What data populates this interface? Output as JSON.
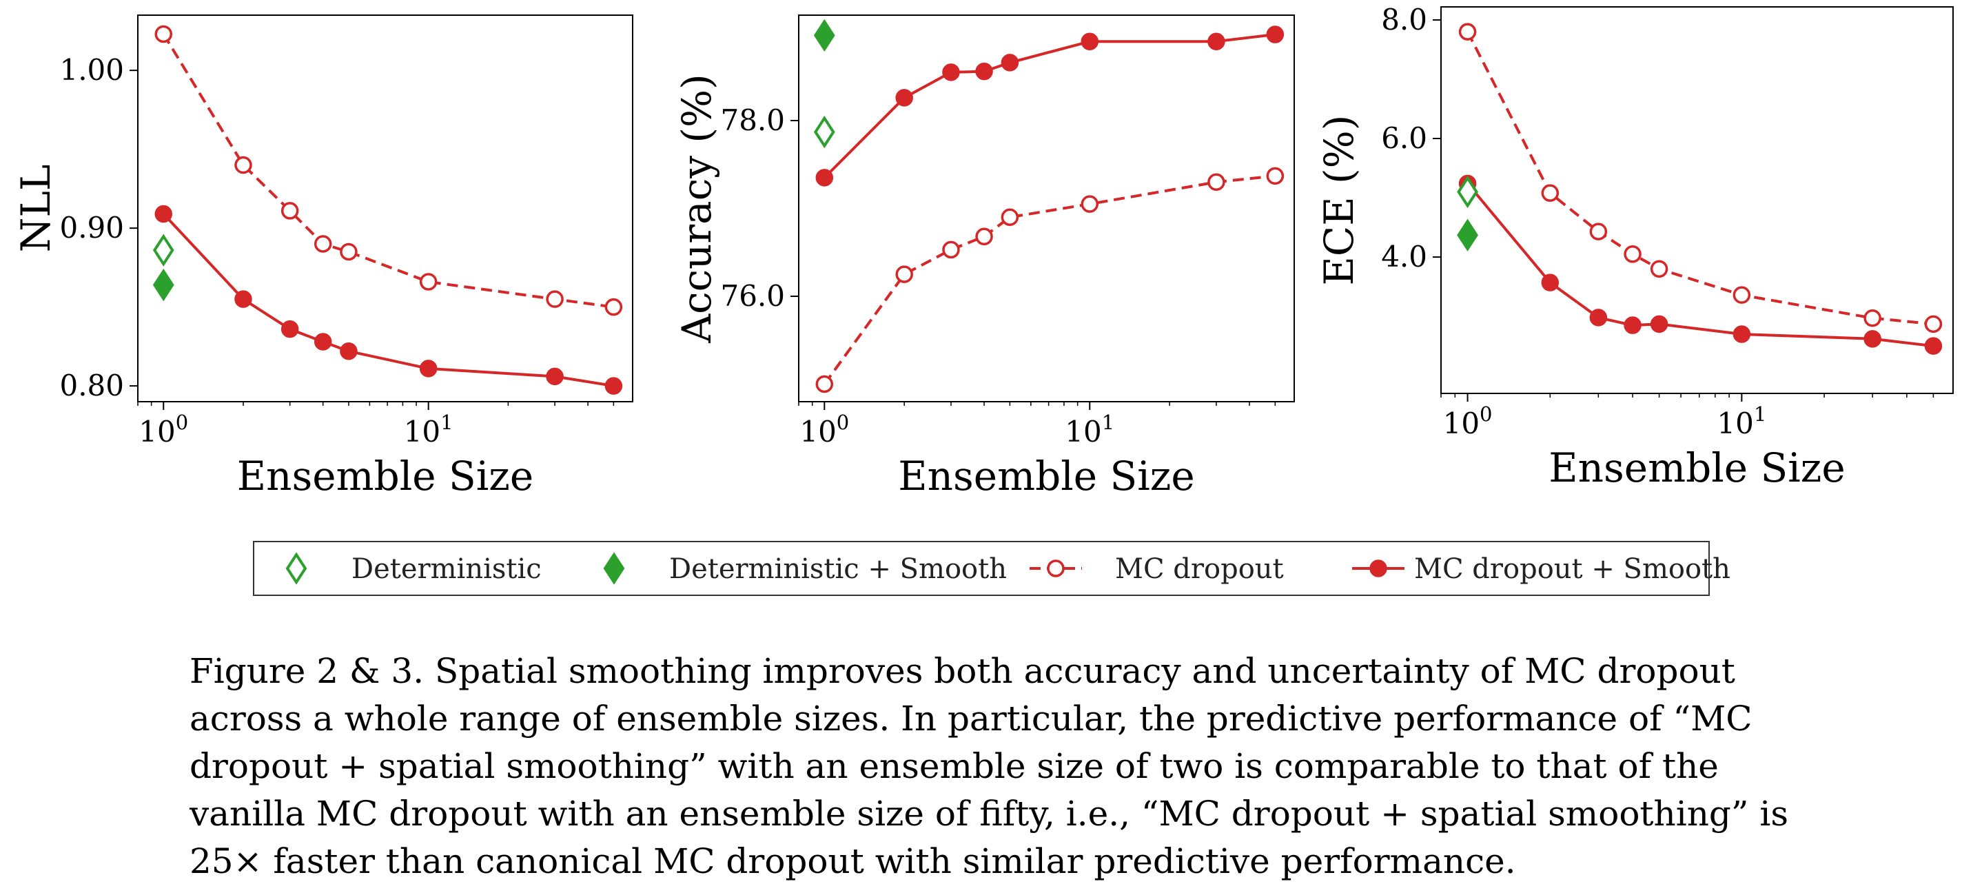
{
  "chart_data": [
    {
      "type": "line",
      "xscale": "log",
      "xlabel": "Ensemble Size",
      "ylabel": "NLL",
      "x_ticks": [
        "10^0",
        "10^1"
      ],
      "y_ticks": [
        "0.80",
        "0.90",
        "1.00"
      ],
      "xlim": [
        0.8,
        59
      ],
      "ylim": [
        0.79,
        1.035
      ],
      "series": [
        {
          "name": "Deterministic",
          "x": [
            1
          ],
          "y": [
            0.886
          ]
        },
        {
          "name": "Deterministic + Smooth",
          "x": [
            1
          ],
          "y": [
            0.864
          ]
        },
        {
          "name": "MC dropout",
          "x": [
            1,
            2,
            3,
            4,
            5,
            10,
            30,
            50
          ],
          "y": [
            1.023,
            0.94,
            0.911,
            0.89,
            0.885,
            0.866,
            0.855,
            0.85
          ]
        },
        {
          "name": "MC dropout + Smooth",
          "x": [
            1,
            2,
            3,
            4,
            5,
            10,
            30,
            50
          ],
          "y": [
            0.909,
            0.855,
            0.836,
            0.828,
            0.822,
            0.811,
            0.806,
            0.8
          ]
        }
      ]
    },
    {
      "type": "line",
      "xscale": "log",
      "xlabel": "Ensemble Size",
      "ylabel": "Accuracy (%)",
      "x_ticks": [
        "10^0",
        "10^1"
      ],
      "y_ticks": [
        "76.0",
        "78.0"
      ],
      "xlim": [
        0.8,
        59
      ],
      "ylim": [
        74.8,
        79.2
      ],
      "series": [
        {
          "name": "Deterministic",
          "x": [
            1
          ],
          "y": [
            77.87
          ]
        },
        {
          "name": "Deterministic + Smooth",
          "x": [
            1
          ],
          "y": [
            78.97
          ]
        },
        {
          "name": "MC dropout",
          "x": [
            1,
            2,
            3,
            4,
            5,
            10,
            30,
            50
          ],
          "y": [
            75.0,
            76.25,
            76.53,
            76.68,
            76.9,
            77.05,
            77.3,
            77.37
          ]
        },
        {
          "name": "MC dropout + Smooth",
          "x": [
            1,
            2,
            3,
            4,
            5,
            10,
            30,
            50
          ],
          "y": [
            77.35,
            78.26,
            78.55,
            78.56,
            78.66,
            78.9,
            78.9,
            78.98
          ]
        }
      ]
    },
    {
      "type": "line",
      "xscale": "log",
      "xlabel": "Ensemble Size",
      "ylabel": "ECE (%)",
      "x_ticks": [
        "10^0",
        "10^1"
      ],
      "y_ticks": [
        "4.0",
        "6.0",
        "8.0"
      ],
      "xlim": [
        0.8,
        59
      ],
      "ylim": [
        1.7,
        8.22
      ],
      "series": [
        {
          "name": "Deterministic",
          "x": [
            1
          ],
          "y": [
            5.1
          ]
        },
        {
          "name": "Deterministic + Smooth",
          "x": [
            1
          ],
          "y": [
            4.37
          ]
        },
        {
          "name": "MC dropout",
          "x": [
            1,
            2,
            3,
            4,
            5,
            10,
            30,
            50
          ],
          "y": [
            7.8,
            5.08,
            4.43,
            4.05,
            3.8,
            3.36,
            2.97,
            2.87
          ]
        },
        {
          "name": "MC dropout + Smooth",
          "x": [
            1,
            2,
            3,
            4,
            5,
            10,
            30,
            50
          ],
          "y": [
            5.24,
            3.57,
            2.98,
            2.85,
            2.87,
            2.7,
            2.62,
            2.5
          ]
        }
      ]
    }
  ],
  "legend": [
    {
      "label": "Deterministic",
      "marker": "diamond-open",
      "line": "none",
      "color": "#2ca02c"
    },
    {
      "label": "Deterministic + Smooth",
      "marker": "diamond-filled",
      "line": "none",
      "color": "#2ca02c"
    },
    {
      "label": "MC dropout",
      "marker": "circle-open",
      "line": "dashed",
      "color": "#d62728"
    },
    {
      "label": "MC dropout + Smooth",
      "marker": "circle-filled",
      "line": "solid",
      "color": "#d62728"
    }
  ],
  "colors": {
    "red": "#d62728",
    "green": "#2ca02c"
  },
  "caption": "Figure 2 & 3. Spatial smoothing improves both accuracy and uncertainty of MC dropout across a whole range of ensemble sizes. In particular, the predictive performance of “MC dropout + spatial smoothing” with an ensemble size of two is comparable to that of the vanilla MC dropout with an ensemble size of fifty, i.e., “MC dropout + spatial smoothing” is 25× faster than canonical MC dropout with similar predictive performance."
}
